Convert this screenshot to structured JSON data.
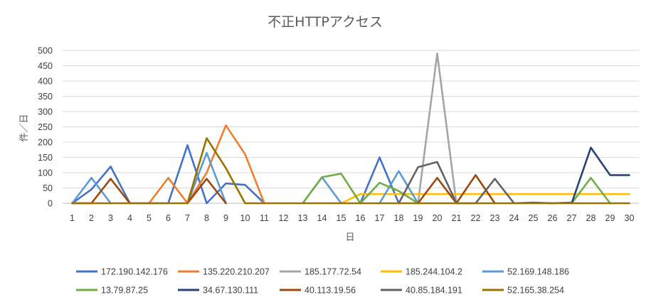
{
  "chart_data": {
    "type": "line",
    "title": "不正HTTPアクセス",
    "xlabel": "日",
    "ylabel": "件／日",
    "ylim": [
      0,
      500
    ],
    "yticks": [
      0,
      50,
      100,
      150,
      200,
      250,
      300,
      350,
      400,
      450,
      500
    ],
    "grid": true,
    "legend_position": "bottom",
    "categories": [
      "1",
      "2",
      "3",
      "4",
      "5",
      "6",
      "7",
      "8",
      "9",
      "10",
      "11",
      "12",
      "13",
      "14",
      "15",
      "16",
      "17",
      "18",
      "19",
      "20",
      "21",
      "22",
      "23",
      "24",
      "25",
      "26",
      "27",
      "28",
      "29",
      "30"
    ],
    "series": [
      {
        "name": "172.190.142.176",
        "color": "#4472c4",
        "values": [
          0,
          45,
          120,
          0,
          0,
          0,
          190,
          0,
          65,
          60,
          0,
          null,
          null,
          null,
          null,
          0,
          150,
          0,
          null,
          null,
          null,
          null,
          null,
          null,
          null,
          null,
          null,
          null,
          null,
          null
        ]
      },
      {
        "name": "135.220.210.207",
        "color": "#ed7d31",
        "values": [
          null,
          null,
          null,
          null,
          0,
          83,
          0,
          100,
          255,
          160,
          0,
          null,
          null,
          null,
          null,
          null,
          null,
          null,
          null,
          null,
          null,
          null,
          null,
          null,
          null,
          null,
          null,
          null,
          null,
          null
        ]
      },
      {
        "name": "185.177.72.54",
        "color": "#a5a5a5",
        "values": [
          null,
          null,
          null,
          null,
          null,
          null,
          null,
          null,
          null,
          null,
          null,
          null,
          null,
          null,
          null,
          null,
          null,
          null,
          0,
          490,
          0,
          null,
          null,
          null,
          null,
          null,
          null,
          null,
          null,
          null
        ]
      },
      {
        "name": "185.244.104.2",
        "color": "#ffc000",
        "values": [
          null,
          null,
          null,
          null,
          null,
          null,
          null,
          null,
          null,
          null,
          null,
          null,
          null,
          null,
          0,
          30,
          30,
          30,
          30,
          30,
          30,
          30,
          30,
          30,
          30,
          30,
          30,
          30,
          30,
          30
        ]
      },
      {
        "name": "52.169.148.186",
        "color": "#5b9bd5",
        "values": [
          0,
          83,
          0,
          null,
          null,
          null,
          0,
          165,
          0,
          null,
          null,
          null,
          0,
          85,
          0,
          null,
          0,
          105,
          0,
          null,
          null,
          null,
          null,
          null,
          null,
          null,
          null,
          null,
          null,
          null
        ]
      },
      {
        "name": "13.79.87.25",
        "color": "#70ad47",
        "values": [
          null,
          null,
          null,
          null,
          null,
          null,
          null,
          null,
          null,
          null,
          null,
          null,
          0,
          85,
          97,
          0,
          67,
          40,
          0,
          null,
          null,
          null,
          null,
          null,
          null,
          null,
          0,
          83,
          0,
          null
        ]
      },
      {
        "name": "34.67.130.111",
        "color": "#264478",
        "values": [
          null,
          null,
          null,
          null,
          null,
          null,
          null,
          null,
          null,
          null,
          null,
          null,
          null,
          null,
          null,
          null,
          null,
          null,
          null,
          null,
          null,
          null,
          null,
          null,
          null,
          null,
          0,
          182,
          92,
          92
        ]
      },
      {
        "name": "40.113.19.56",
        "color": "#9e480e",
        "values": [
          0,
          0,
          80,
          0,
          null,
          null,
          0,
          80,
          0,
          null,
          null,
          null,
          null,
          null,
          null,
          null,
          null,
          null,
          0,
          83,
          0,
          92,
          0,
          null,
          null,
          null,
          null,
          null,
          null,
          null
        ]
      },
      {
        "name": "40.85.184.191",
        "color": "#636363",
        "values": [
          null,
          null,
          null,
          null,
          null,
          null,
          null,
          null,
          null,
          null,
          null,
          null,
          null,
          null,
          null,
          null,
          null,
          0,
          118,
          135,
          0,
          0,
          80,
          0,
          2,
          0,
          2,
          null,
          null,
          null
        ]
      },
      {
        "name": "52.165.38.254",
        "color": "#997300",
        "values": [
          0,
          0,
          0,
          0,
          0,
          0,
          0,
          213,
          115,
          0,
          0,
          0,
          0,
          0,
          0,
          0,
          0,
          0,
          0,
          0,
          0,
          0,
          0,
          0,
          0,
          0,
          0,
          0,
          0,
          0
        ]
      }
    ]
  }
}
